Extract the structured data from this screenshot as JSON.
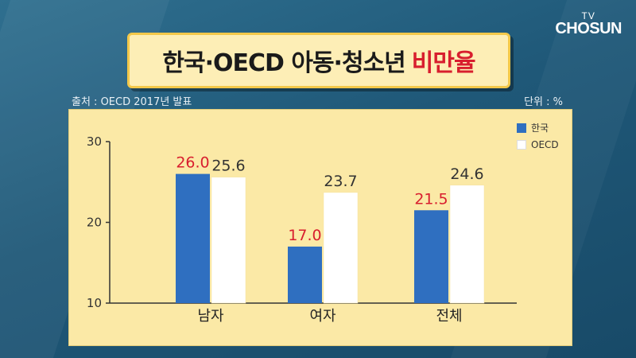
{
  "logo": {
    "line1": "TV",
    "line2": "CHOSUN"
  },
  "title": {
    "main": "한국·OECD 아동·청소년",
    "accent": "비만율"
  },
  "source": "출처 : OECD 2017년 발표",
  "unit": "단위 : %",
  "colors": {
    "korea": "#2f6fc0",
    "oecd": "#ffffff",
    "korea_label": "#d81e2e",
    "oecd_label": "#333333"
  },
  "chart_data": {
    "type": "bar",
    "categories": [
      "남자",
      "여자",
      "전체"
    ],
    "series": [
      {
        "name": "한국",
        "values": [
          26.0,
          17.0,
          21.5
        ]
      },
      {
        "name": "OECD",
        "values": [
          25.6,
          23.7,
          24.6
        ]
      }
    ],
    "ylim": [
      10,
      30
    ],
    "yticks": [
      10,
      20,
      30
    ],
    "legend": "top-right",
    "grid": false,
    "xlabel": "",
    "ylabel": ""
  }
}
